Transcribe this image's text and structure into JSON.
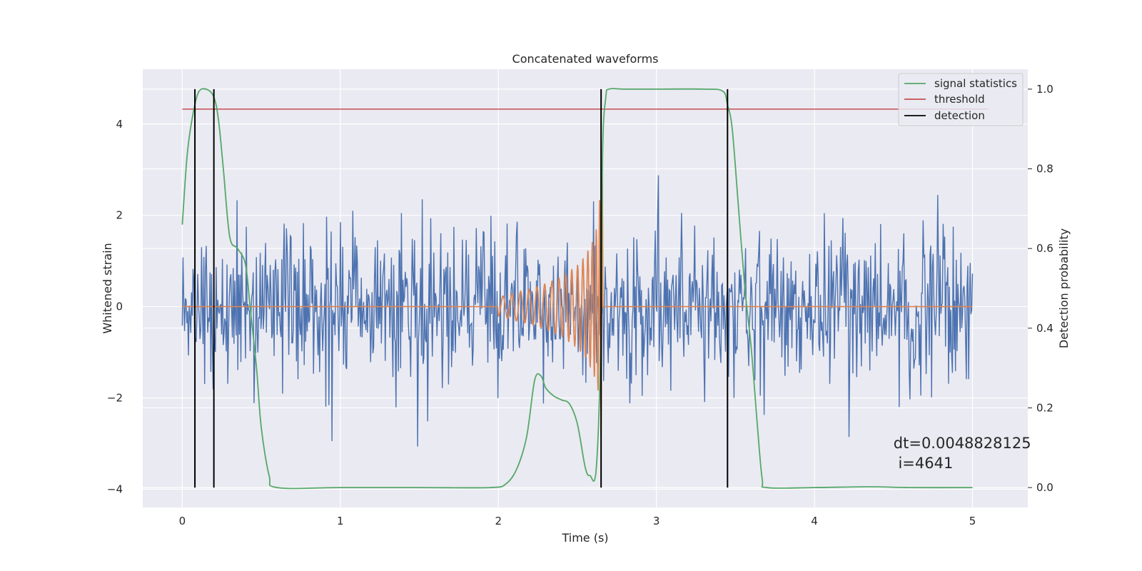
{
  "chart_data": {
    "type": "line",
    "title": "Concatenated waveforms",
    "xlabel": "Time (s)",
    "ylabel": "Whitened strain",
    "y2label": "Detection probability",
    "xlim": [
      -0.25,
      5.35
    ],
    "ylim": [
      -4.4,
      5.2
    ],
    "y2lim": [
      -0.05,
      1.05
    ],
    "xticks": [
      0,
      1,
      2,
      3,
      4,
      5
    ],
    "yticks": [
      -4,
      -2,
      0,
      2,
      4
    ],
    "y2ticks": [
      0.0,
      0.2,
      0.4,
      0.6,
      0.8,
      1.0
    ],
    "xtick_labels": [
      "0",
      "1",
      "2",
      "3",
      "4",
      "5"
    ],
    "ytick_labels": [
      "−4",
      "−2",
      "0",
      "2",
      "4"
    ],
    "y2tick_labels": [
      "0.0",
      "0.2",
      "0.4",
      "0.6",
      "0.8",
      "1.0"
    ],
    "grid": true,
    "legend_position": "top-right",
    "colors": {
      "background": "#eaeaf2",
      "grid": "#ffffff",
      "strain": "#4c72b0",
      "template": "#dd8452",
      "signal_statistics": "#55a868",
      "threshold": "#c44e52",
      "detection": "#000000"
    },
    "legend": [
      {
        "name": "signal statistics",
        "color": "#55a868"
      },
      {
        "name": "threshold",
        "color": "#c44e52"
      },
      {
        "name": "detection",
        "color": "#000000"
      }
    ],
    "strain_noise": {
      "t_start": 0,
      "t_end": 5,
      "dt": 0.0048828125,
      "sigma": 0.85
    },
    "template_waveform": {
      "t": [
        2.0,
        2.1,
        2.2,
        2.3,
        2.4,
        2.5,
        2.55,
        2.6,
        2.63,
        2.65,
        2.66
      ],
      "amplitude": [
        0.2,
        0.3,
        0.38,
        0.5,
        0.65,
        0.9,
        1.1,
        1.45,
        1.8,
        2.8,
        2.8
      ]
    },
    "signal_statistics": {
      "t": [
        0.0,
        0.03,
        0.06,
        0.1,
        0.15,
        0.2,
        0.23,
        0.26,
        0.3,
        0.35,
        0.4,
        0.43,
        0.47,
        0.5,
        0.55,
        0.6,
        1.0,
        1.5,
        1.95,
        2.05,
        2.12,
        2.18,
        2.23,
        2.27,
        2.3,
        2.35,
        2.4,
        2.45,
        2.5,
        2.55,
        2.58,
        2.62,
        2.65,
        2.66,
        2.68,
        2.7,
        2.8,
        3.0,
        3.3,
        3.42,
        3.45,
        3.48,
        3.52,
        3.56,
        3.6,
        3.64,
        3.67,
        3.7,
        4.0,
        4.35,
        4.6,
        5.0
      ],
      "values": [
        0.66,
        0.83,
        0.92,
        0.99,
        1.0,
        0.98,
        0.92,
        0.8,
        0.63,
        0.6,
        0.56,
        0.45,
        0.3,
        0.15,
        0.03,
        0.0,
        0.0,
        0.0,
        0.0,
        0.01,
        0.05,
        0.13,
        0.27,
        0.28,
        0.25,
        0.23,
        0.22,
        0.21,
        0.16,
        0.05,
        0.03,
        0.05,
        0.4,
        0.85,
        0.98,
        1.0,
        1.0,
        1.0,
        1.0,
        0.995,
        0.96,
        0.9,
        0.7,
        0.5,
        0.35,
        0.15,
        0.02,
        0.0,
        0.0,
        0.002,
        0.0,
        0.0
      ]
    },
    "threshold": {
      "value": 0.95,
      "t_start": 0,
      "t_end": 5.1
    },
    "detections": [
      0.08,
      0.2,
      2.65,
      3.45
    ],
    "annotation": {
      "line1": "dt=0.0048828125",
      "line2": " i=4641",
      "x": 4.5,
      "y": -3.1
    }
  }
}
